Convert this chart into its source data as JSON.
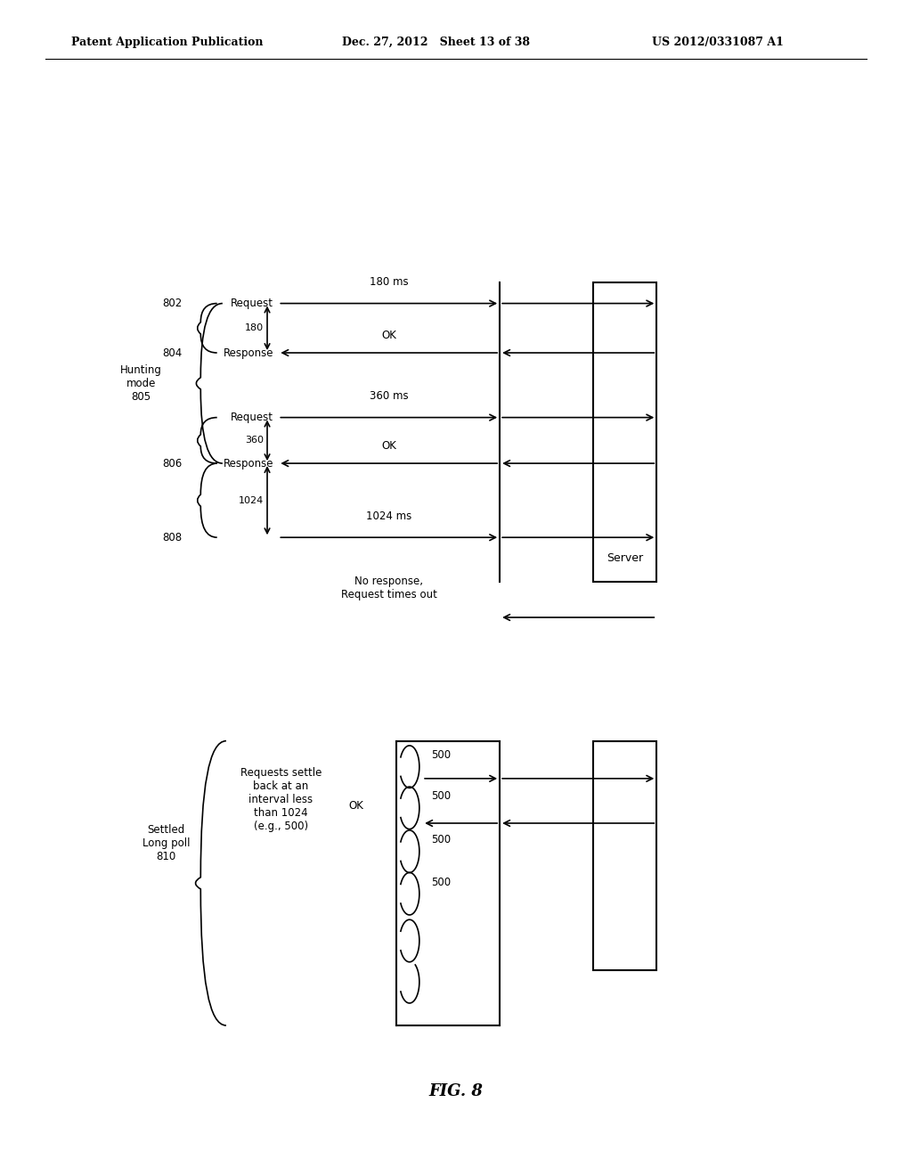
{
  "bg_color": "#ffffff",
  "header_left": "Patent Application Publication",
  "header_mid": "Dec. 27, 2012   Sheet 13 of 38",
  "header_right": "US 2012/0331087 A1",
  "fig_label": "FIG. 8"
}
